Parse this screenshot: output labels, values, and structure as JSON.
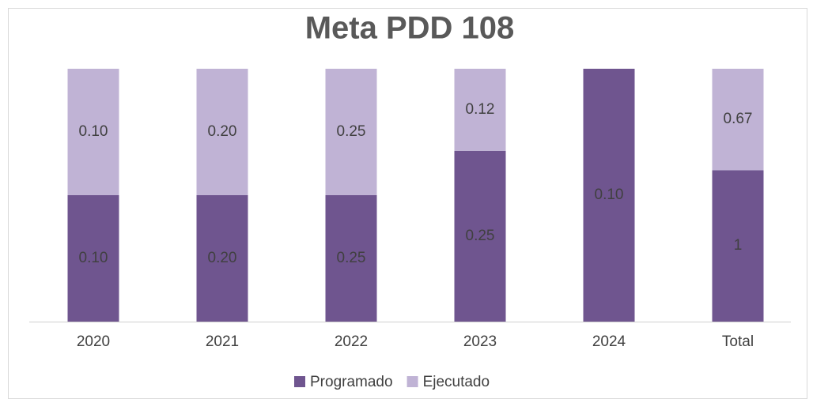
{
  "chart_data": {
    "type": "stacked_bar_100",
    "title": "Meta PDD 108",
    "categories": [
      "2020",
      "2021",
      "2022",
      "2023",
      "2024",
      "Total"
    ],
    "series": [
      {
        "name": "Programado",
        "color": "#6f558f",
        "values": [
          0.1,
          0.2,
          0.25,
          0.25,
          0.1,
          1
        ],
        "value_labels": [
          "0.10",
          "0.20",
          "0.25",
          "0.25",
          "0.10",
          "1"
        ]
      },
      {
        "name": "Ejecutado",
        "color": "#c0b3d5",
        "values": [
          0.1,
          0.2,
          0.25,
          0.12,
          null,
          0.67
        ],
        "value_labels": [
          "0.10",
          "0.20",
          "0.25",
          "0.12",
          null,
          "0.67"
        ]
      }
    ],
    "legend": "bottom"
  }
}
